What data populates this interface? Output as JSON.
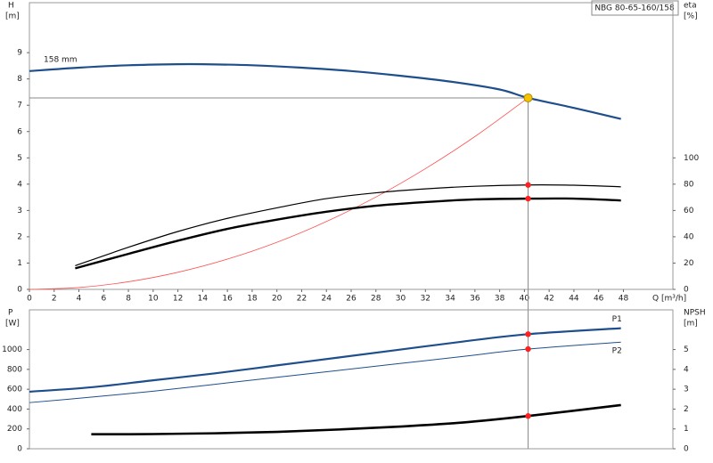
{
  "chart_data": [
    {
      "type": "line",
      "title": "NBG 80-65-160/158",
      "y_label": "H",
      "y_unit": "[m]",
      "y2_label": "eta",
      "y2_unit": "[%]",
      "x_label": "Q [m³/h]",
      "xlim": [
        0,
        52
      ],
      "xticks": [
        0,
        2,
        4,
        6,
        8,
        10,
        12,
        14,
        16,
        18,
        20,
        22,
        24,
        26,
        28,
        30,
        32,
        34,
        36,
        38,
        40,
        42,
        44,
        46,
        48
      ],
      "ylim": [
        0,
        10.9
      ],
      "yticks": [
        0,
        1,
        2,
        3,
        4,
        5,
        6,
        7,
        8,
        9
      ],
      "y2lim": [
        0,
        218
      ],
      "y2ticks": [
        0,
        20,
        40,
        60,
        80,
        100
      ],
      "duty_point": {
        "x": 40.3,
        "y": 7.28,
        "color": "#f5c400"
      },
      "series": [
        {
          "name": "158 mm",
          "color": "#1f4e8c",
          "width": 2.2,
          "x": [
            0,
            4,
            8,
            12,
            14,
            18,
            22,
            26,
            30,
            34,
            38,
            40.3,
            44,
            47.8
          ],
          "values": [
            8.3,
            8.43,
            8.52,
            8.56,
            8.56,
            8.52,
            8.43,
            8.3,
            8.12,
            7.9,
            7.6,
            7.28,
            6.9,
            6.48
          ]
        },
        {
          "color": "#ff5050",
          "width": 0.8,
          "x": [
            0,
            4,
            8,
            12,
            16,
            20,
            24,
            28,
            32,
            36,
            40.3
          ],
          "values": [
            0,
            0.07,
            0.29,
            0.65,
            1.15,
            1.79,
            2.58,
            3.51,
            4.59,
            5.81,
            7.28
          ]
        },
        {
          "color": "#000000",
          "width": 1.2,
          "axis": "y2",
          "x": [
            3.7,
            8,
            12,
            16,
            20,
            24,
            28,
            32,
            36,
            40.3,
            44,
            47.8
          ],
          "values": [
            18,
            32,
            44,
            54,
            62,
            69,
            73.4,
            76.4,
            78.4,
            79.4,
            79.2,
            78
          ]
        },
        {
          "color": "#000000",
          "width": 2.4,
          "axis": "y2",
          "x": [
            3.7,
            8,
            12,
            16,
            20,
            24,
            28,
            32,
            36,
            40.3,
            44,
            47.8
          ],
          "values": [
            16,
            27,
            37,
            46,
            53,
            59,
            63.6,
            66.4,
            68.4,
            69,
            69,
            67.6
          ]
        }
      ]
    },
    {
      "type": "line",
      "y_label": "P",
      "y_unit": "[W]",
      "y2_label": "NPSH",
      "y2_unit": "[m]",
      "xlim": [
        0,
        52
      ],
      "ylim": [
        0,
        1400
      ],
      "yticks": [
        0,
        200,
        400,
        600,
        800,
        1000
      ],
      "y2lim": [
        0,
        7
      ],
      "y2ticks": [
        0,
        1,
        2,
        3,
        4,
        5
      ],
      "duty_point": {
        "x": 40.3
      },
      "series": [
        {
          "name": "P1",
          "color": "#1f4e8c",
          "width": 2.2,
          "x": [
            0,
            5,
            10,
            15,
            20,
            25,
            30,
            35,
            40.3,
            47.8
          ],
          "values": [
            575,
            620,
            690,
            760,
            840,
            920,
            1000,
            1080,
            1155,
            1215
          ]
        },
        {
          "name": "P2",
          "color": "#1f4e8c",
          "width": 1,
          "x": [
            0,
            5,
            10,
            15,
            20,
            25,
            30,
            35,
            40.3,
            47.8
          ],
          "values": [
            465,
            520,
            580,
            650,
            720,
            790,
            860,
            930,
            1005,
            1075
          ]
        },
        {
          "color": "#000000",
          "width": 2.6,
          "axis": "y2",
          "x": [
            5,
            10,
            15,
            20,
            25,
            30,
            35,
            40.3,
            47.8
          ],
          "values": [
            0.73,
            0.74,
            0.78,
            0.85,
            0.97,
            1.12,
            1.32,
            1.65,
            2.2
          ]
        }
      ]
    }
  ]
}
